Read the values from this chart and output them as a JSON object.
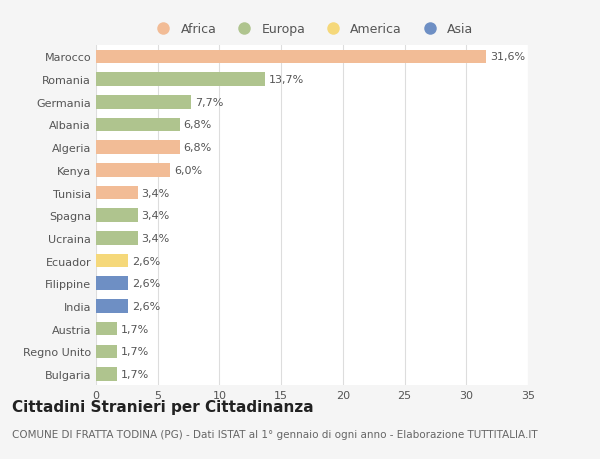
{
  "countries": [
    "Marocco",
    "Romania",
    "Germania",
    "Albania",
    "Algeria",
    "Kenya",
    "Tunisia",
    "Spagna",
    "Ucraina",
    "Ecuador",
    "Filippine",
    "India",
    "Austria",
    "Regno Unito",
    "Bulgaria"
  ],
  "values": [
    31.6,
    13.7,
    7.7,
    6.8,
    6.8,
    6.0,
    3.4,
    3.4,
    3.4,
    2.6,
    2.6,
    2.6,
    1.7,
    1.7,
    1.7
  ],
  "labels": [
    "31,6%",
    "13,7%",
    "7,7%",
    "6,8%",
    "6,8%",
    "6,0%",
    "3,4%",
    "3,4%",
    "3,4%",
    "2,6%",
    "2,6%",
    "2,6%",
    "1,7%",
    "1,7%",
    "1,7%"
  ],
  "bar_colors": [
    "#f2bc96",
    "#afc48e",
    "#afc48e",
    "#afc48e",
    "#f2bc96",
    "#f2bc96",
    "#f2bc96",
    "#afc48e",
    "#afc48e",
    "#f5d87a",
    "#6e8fc4",
    "#6e8fc4",
    "#afc48e",
    "#afc48e",
    "#afc48e"
  ],
  "legend_colors": [
    "#f2bc96",
    "#afc48e",
    "#f5d87a",
    "#6e8fc4"
  ],
  "legend_labels": [
    "Africa",
    "Europa",
    "America",
    "Asia"
  ],
  "title": "Cittadini Stranieri per Cittadinanza",
  "subtitle": "COMUNE DI FRATTA TODINA (PG) - Dati ISTAT al 1° gennaio di ogni anno - Elaborazione TUTTITALIA.IT",
  "xlim": [
    0,
    35
  ],
  "xticks": [
    0,
    5,
    10,
    15,
    20,
    25,
    30,
    35
  ],
  "bg_color": "#f5f5f5",
  "plot_bg_color": "#ffffff",
  "title_fontsize": 11,
  "subtitle_fontsize": 7.5,
  "label_fontsize": 8,
  "tick_fontsize": 8,
  "legend_fontsize": 9
}
